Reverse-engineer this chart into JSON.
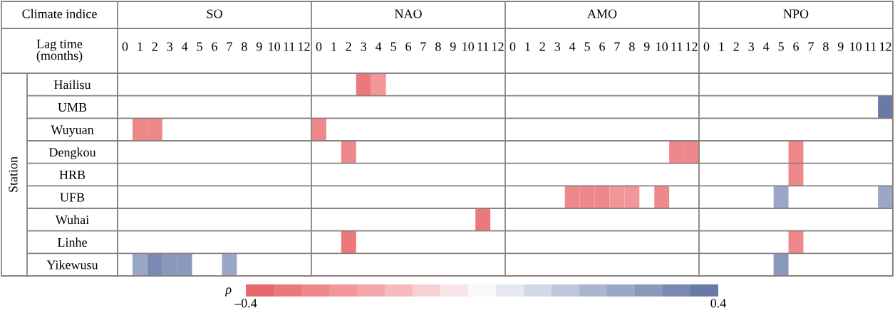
{
  "chart_data": {
    "type": "heatmap",
    "ylabel": "Station",
    "annotations": [
      "Climate indice",
      "Lag time\n(months)",
      "SO",
      "NAO",
      "AMO",
      "NPO"
    ],
    "clabel": "ρ",
    "clim": [
      -0.4,
      0.4
    ],
    "cticks": [
      {
        "value": -0.4,
        "label": "–0.4"
      },
      0.4
    ],
    "grid": "y",
    "categories": [
      "0",
      "1",
      "2",
      "3",
      "4",
      "5",
      "6",
      "7",
      "8",
      "9",
      "10",
      "11",
      "12",
      "0",
      "1",
      "2",
      "3",
      "4",
      "5",
      "6",
      "7",
      "8",
      "9",
      "10",
      "11",
      "12",
      "0",
      "1",
      "2",
      "3",
      "4",
      "5",
      "6",
      "7",
      "8",
      "9",
      "10",
      "11",
      "12",
      "0",
      "1",
      "2",
      "3",
      "4",
      "5",
      "6",
      "7",
      "8",
      "9",
      "10",
      "11",
      "12"
    ],
    "y_categories": [
      "Hailisu",
      "UMB",
      "Wuyuan",
      "Dengkou",
      "HRB",
      "UFB",
      "Wuhai",
      "Linhe",
      "Yikewusu"
    ],
    "cells": [
      [
        null,
        null,
        null,
        null,
        null,
        null,
        null,
        null,
        null,
        null,
        null,
        null,
        null,
        null,
        null,
        null,
        -0.33,
        -0.24,
        null,
        null,
        null,
        null,
        null,
        null,
        null,
        null,
        null,
        null,
        null,
        null,
        null,
        null,
        null,
        null,
        null,
        null,
        null,
        null,
        null,
        null,
        null,
        null,
        null,
        null,
        null,
        null,
        null,
        null,
        null,
        null,
        null,
        null
      ],
      [
        null,
        null,
        null,
        null,
        null,
        null,
        null,
        null,
        null,
        null,
        null,
        null,
        null,
        null,
        null,
        null,
        null,
        null,
        null,
        null,
        null,
        null,
        null,
        null,
        null,
        null,
        null,
        null,
        null,
        null,
        null,
        null,
        null,
        null,
        null,
        null,
        null,
        null,
        null,
        null,
        null,
        null,
        null,
        null,
        null,
        null,
        null,
        null,
        null,
        null,
        null,
        0.37
      ],
      [
        null,
        -0.27,
        -0.27,
        null,
        null,
        null,
        null,
        null,
        null,
        null,
        null,
        null,
        null,
        -0.28,
        null,
        null,
        null,
        null,
        null,
        null,
        null,
        null,
        null,
        null,
        null,
        null,
        null,
        null,
        null,
        null,
        null,
        null,
        null,
        null,
        null,
        null,
        null,
        null,
        null,
        null,
        null,
        null,
        null,
        null,
        null,
        null,
        null,
        null,
        null,
        null,
        null,
        null
      ],
      [
        null,
        null,
        null,
        null,
        null,
        null,
        null,
        null,
        null,
        null,
        null,
        null,
        null,
        null,
        null,
        -0.29,
        null,
        null,
        null,
        null,
        null,
        null,
        null,
        null,
        null,
        null,
        null,
        null,
        null,
        null,
        null,
        null,
        null,
        null,
        null,
        null,
        null,
        -0.27,
        -0.27,
        null,
        null,
        null,
        null,
        null,
        null,
        -0.26,
        null,
        null,
        null,
        null,
        null,
        null
      ],
      [
        null,
        null,
        null,
        null,
        null,
        null,
        null,
        null,
        null,
        null,
        null,
        null,
        null,
        null,
        null,
        null,
        null,
        null,
        null,
        null,
        null,
        null,
        null,
        null,
        null,
        null,
        null,
        null,
        null,
        null,
        null,
        null,
        null,
        null,
        null,
        null,
        null,
        null,
        null,
        null,
        null,
        null,
        null,
        null,
        null,
        -0.26,
        null,
        null,
        null,
        null,
        null,
        null
      ],
      [
        null,
        null,
        null,
        null,
        null,
        null,
        null,
        null,
        null,
        null,
        null,
        null,
        null,
        null,
        null,
        null,
        null,
        null,
        null,
        null,
        null,
        null,
        null,
        null,
        null,
        null,
        null,
        null,
        null,
        null,
        -0.3,
        -0.28,
        -0.28,
        -0.25,
        -0.25,
        null,
        -0.26,
        null,
        null,
        null,
        null,
        null,
        null,
        null,
        0.25,
        null,
        null,
        null,
        null,
        null,
        null,
        0.25
      ],
      [
        null,
        null,
        null,
        null,
        null,
        null,
        null,
        null,
        null,
        null,
        null,
        null,
        null,
        null,
        null,
        null,
        null,
        null,
        null,
        null,
        null,
        null,
        null,
        null,
        -0.33,
        null,
        null,
        null,
        null,
        null,
        null,
        null,
        null,
        null,
        null,
        null,
        null,
        null,
        null,
        null,
        null,
        null,
        null,
        null,
        null,
        null,
        null,
        null,
        null,
        null,
        null,
        null
      ],
      [
        null,
        null,
        null,
        null,
        null,
        null,
        null,
        null,
        null,
        null,
        null,
        null,
        null,
        null,
        null,
        -0.32,
        null,
        null,
        null,
        null,
        null,
        null,
        null,
        null,
        null,
        null,
        null,
        null,
        null,
        null,
        null,
        null,
        null,
        null,
        null,
        null,
        null,
        null,
        null,
        null,
        null,
        null,
        null,
        null,
        null,
        -0.26,
        null,
        null,
        null,
        null,
        null,
        null
      ],
      [
        null,
        0.24,
        0.31,
        0.28,
        0.28,
        null,
        null,
        0.25,
        null,
        null,
        null,
        null,
        null,
        null,
        null,
        null,
        null,
        null,
        null,
        null,
        null,
        null,
        null,
        null,
        null,
        null,
        null,
        null,
        null,
        null,
        null,
        null,
        null,
        null,
        null,
        null,
        null,
        null,
        null,
        null,
        null,
        null,
        null,
        null,
        0.29,
        null,
        null,
        null,
        null,
        null,
        null,
        null
      ]
    ]
  }
}
